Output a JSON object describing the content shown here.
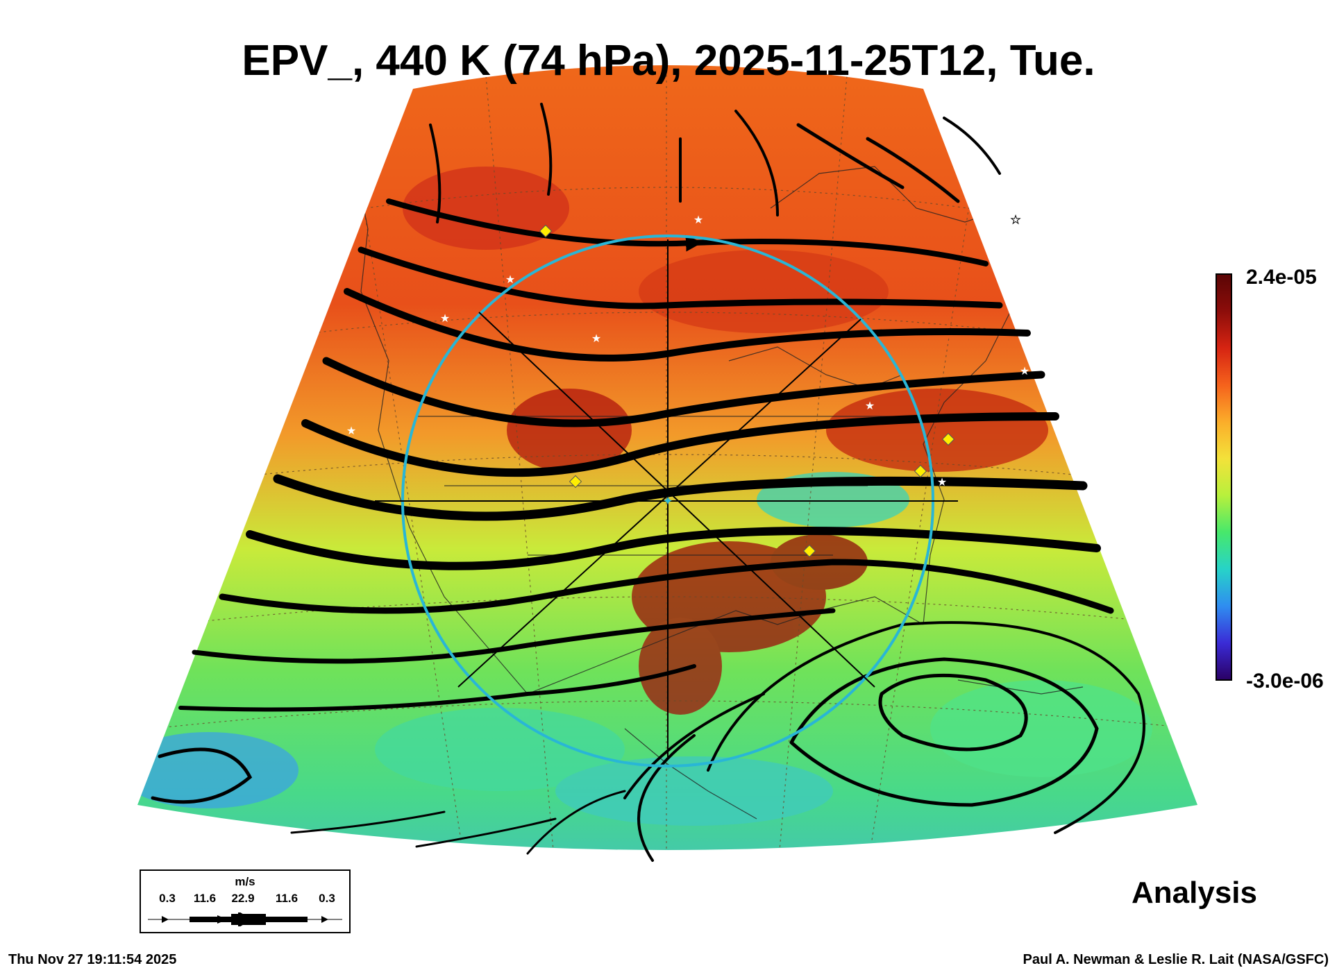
{
  "title": "EPV_, 440 K (74 hPa), 2025-11-25T12, Tue.",
  "colorbar": {
    "max_label": "2.4e-05",
    "min_label": "-3.0e-06",
    "colors": [
      "#2a0064",
      "#3a2bd6",
      "#2f8df0",
      "#27d3c8",
      "#47e86b",
      "#b8f03c",
      "#f3e23a",
      "#fbad2a",
      "#f5621c",
      "#d62412",
      "#8c0d0a",
      "#5a0505"
    ]
  },
  "analysis_label": "Analysis",
  "wind_legend": {
    "unit": "m/s",
    "ticks": [
      "0.3",
      "11.6",
      "22.9",
      "11.6",
      "0.3"
    ]
  },
  "footer": {
    "timestamp": "Thu Nov 27 19:11:54 2025",
    "credit": "Paul A. Newman & Leslie R. Lait (NASA/GSFC)"
  },
  "map_colors": {
    "outline": "#000000",
    "circle": "#29b6d6",
    "station_diamond": "#ffee00",
    "station_star": "#ffffff"
  }
}
